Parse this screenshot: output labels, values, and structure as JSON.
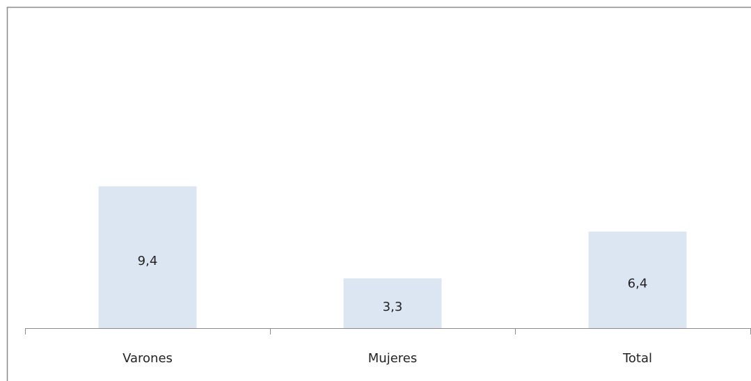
{
  "chart_data": {
    "type": "bar",
    "categories": [
      "Varones",
      "Mujeres",
      "Total"
    ],
    "values": [
      9.4,
      3.3,
      6.4
    ],
    "value_labels": [
      "9,4",
      "3,3",
      "6,4"
    ],
    "color": "#dce6f2",
    "ylim": [
      0,
      20
    ]
  }
}
